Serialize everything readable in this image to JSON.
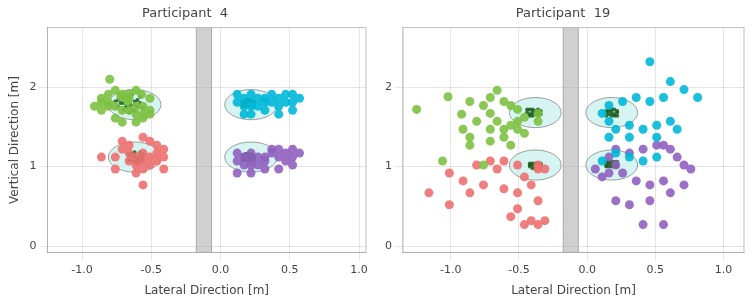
{
  "chart_data": [
    {
      "type": "scatter",
      "title": "Participant  4",
      "xlabel": "Lateral Direction [m]",
      "ylabel": "Vertical Direction [m]",
      "xlim": [
        -1.25,
        1.05
      ],
      "ylim": [
        -0.08,
        2.75
      ],
      "xticks": [
        {
          "value": -1.0,
          "label": "-1.0"
        },
        {
          "value": -0.5,
          "label": "-0.5"
        },
        {
          "value": 0.0,
          "label": "0.0"
        },
        {
          "value": 0.5,
          "label": "0.5"
        },
        {
          "value": 1.0,
          "label": "1.0"
        }
      ],
      "yticks": [
        0,
        1,
        2
      ],
      "grid": true,
      "band": {
        "x": [
          -0.175,
          -0.065
        ],
        "color": "#aaaaaa"
      },
      "targets": {
        "x": [
          -0.62,
          -0.62,
          0.22,
          0.22
        ],
        "y": [
          1.78,
          1.12,
          1.78,
          1.12
        ],
        "radius": 0.19,
        "color": "#c8f0ec"
      },
      "series": [
        {
          "color": "#7dc142",
          "marker": "circle",
          "x": [
            -0.8,
            -0.72,
            -0.66,
            -0.61,
            -0.67,
            -0.57,
            -0.51,
            -0.56,
            -0.61,
            -0.51,
            -0.56,
            -0.61,
            -0.51,
            -0.56,
            -0.61,
            -0.71,
            -0.76,
            -0.71,
            -0.66,
            -0.76,
            -0.81,
            -0.66,
            -0.71,
            -0.76,
            -0.81,
            -0.86,
            -0.81,
            -0.86,
            -0.91,
            -0.86
          ],
          "values": [
            2.1,
            1.88,
            1.92,
            1.96,
            1.82,
            1.91,
            1.86,
            1.76,
            1.76,
            1.71,
            1.66,
            1.66,
            1.66,
            1.61,
            1.56,
            1.56,
            1.61,
            1.71,
            1.71,
            1.76,
            1.81,
            1.86,
            1.91,
            1.96,
            1.91,
            1.86,
            1.76,
            1.71,
            1.76,
            1.81
          ]
        },
        {
          "color": "#f07070",
          "marker": "circle",
          "x": [
            -0.56,
            -0.61,
            -0.51,
            -0.56,
            -0.61,
            -0.51,
            -0.56,
            -0.46,
            -0.66,
            -0.46,
            -0.66,
            -0.71,
            -0.41,
            -0.46,
            -0.66,
            -0.76,
            -0.41,
            -0.51,
            -0.71,
            -0.56,
            -0.61,
            -0.56,
            -0.76,
            -0.41,
            -0.86
          ],
          "values": [
            1.17,
            1.12,
            1.12,
            1.07,
            1.02,
            1.02,
            0.97,
            1.07,
            1.07,
            1.17,
            1.17,
            1.22,
            1.22,
            1.27,
            1.27,
            1.12,
            1.12,
            1.32,
            1.32,
            1.37,
            0.92,
            0.77,
            0.97,
            0.97,
            1.12
          ]
        },
        {
          "color": "#00b8d9",
          "marker": "circle",
          "x": [
            0.12,
            0.17,
            0.22,
            0.27,
            0.22,
            0.12,
            0.17,
            0.22,
            0.27,
            0.32,
            0.32,
            0.37,
            0.42,
            0.47,
            0.52,
            0.57,
            0.47,
            0.37,
            0.42,
            0.52,
            0.52,
            0.42,
            0.32,
            0.22,
            0.17
          ],
          "values": [
            1.91,
            1.86,
            1.91,
            1.86,
            1.81,
            1.81,
            1.76,
            1.76,
            1.76,
            1.81,
            1.86,
            1.91,
            1.86,
            1.91,
            1.91,
            1.86,
            1.81,
            1.81,
            1.76,
            1.81,
            1.71,
            1.66,
            1.71,
            1.66,
            1.66
          ]
        },
        {
          "color": "#9060c0",
          "marker": "circle",
          "x": [
            0.12,
            0.17,
            0.22,
            0.27,
            0.22,
            0.12,
            0.17,
            0.22,
            0.27,
            0.32,
            0.32,
            0.37,
            0.42,
            0.47,
            0.52,
            0.47,
            0.37,
            0.42,
            0.52,
            0.57,
            0.52,
            0.42,
            0.32,
            0.22,
            0.12
          ],
          "values": [
            1.17,
            1.12,
            1.17,
            1.12,
            1.07,
            1.07,
            1.02,
            1.02,
            1.02,
            1.07,
            1.12,
            1.17,
            1.12,
            1.07,
            1.12,
            1.17,
            1.22,
            1.22,
            1.22,
            1.17,
            1.02,
            0.97,
            0.97,
            0.92,
            0.92
          ]
        },
        {
          "color": "#1a5c1a",
          "marker": "dot",
          "x": [
            -0.68,
            -0.62,
            -0.65,
            -0.6,
            -0.64,
            -0.68,
            -0.72,
            -0.7,
            -0.58,
            -0.56,
            -0.66,
            -0.7,
            -0.74,
            -0.76,
            -0.72,
            -0.64,
            -0.6,
            -0.62,
            -0.58,
            -0.66,
            -0.68,
            -0.62,
            -0.7,
            -0.74,
            -0.66
          ],
          "values": [
            1.84,
            1.82,
            1.78,
            1.76,
            1.72,
            1.76,
            1.8,
            1.86,
            1.88,
            1.74,
            1.68,
            1.72,
            1.76,
            1.82,
            1.88,
            1.9,
            1.84,
            1.7,
            1.8,
            1.86,
            1.74,
            1.78,
            1.8,
            1.84,
            1.76
          ]
        },
        {
          "color": "#1a5c1a",
          "marker": "dot",
          "x": [
            -0.62,
            -0.58,
            -0.64,
            -0.6,
            -0.56,
            -0.66,
            -0.62,
            -0.58,
            -0.64,
            -0.6,
            -0.56,
            -0.66,
            -0.62,
            -0.58,
            -0.64,
            -0.6,
            -0.56,
            -0.66,
            -0.62,
            -0.58
          ],
          "values": [
            1.14,
            1.1,
            1.08,
            1.04,
            1.12,
            1.16,
            1.18,
            1.06,
            1.14,
            1.1,
            1.08,
            1.12,
            1.06,
            1.14,
            1.16,
            1.08,
            1.16,
            1.08,
            1.12,
            1.18
          ]
        },
        {
          "color": "#1a5c1a",
          "marker": "dot",
          "x": [
            0.2,
            0.16,
            0.22,
            0.18,
            0.24,
            0.2,
            0.16,
            0.22,
            0.18,
            0.24,
            0.2,
            0.16,
            0.22,
            0.18,
            0.24,
            0.2,
            0.16,
            0.22,
            0.18,
            0.24
          ],
          "values": [
            1.82,
            1.78,
            1.76,
            1.82,
            1.8,
            1.76,
            1.82,
            1.8,
            1.76,
            1.82,
            1.78,
            1.8,
            1.78,
            1.8,
            1.78,
            1.84,
            1.76,
            1.84,
            1.84,
            1.76
          ]
        },
        {
          "color": "#1a5c1a",
          "marker": "dot",
          "x": [
            0.2,
            0.16,
            0.22,
            0.18,
            0.24,
            0.2,
            0.16,
            0.22,
            0.18,
            0.24,
            0.2,
            0.16,
            0.22,
            0.18,
            0.24,
            0.2,
            0.16,
            0.22,
            0.18,
            0.24
          ],
          "values": [
            1.14,
            1.1,
            1.08,
            1.14,
            1.12,
            1.08,
            1.14,
            1.12,
            1.08,
            1.14,
            1.1,
            1.12,
            1.1,
            1.12,
            1.1,
            1.16,
            1.08,
            1.16,
            1.16,
            1.08
          ]
        }
      ]
    },
    {
      "type": "scatter",
      "title": "Participant  19",
      "xlabel": "Lateral Direction [m]",
      "xlim": [
        -1.35,
        1.15
      ],
      "ylim": [
        -0.08,
        2.75
      ],
      "xticks": [
        {
          "value": -1.0,
          "label": "-1.0"
        },
        {
          "value": -0.5,
          "label": "-0.5"
        },
        {
          "value": 0.0,
          "label": "0.0"
        },
        {
          "value": 0.5,
          "label": "0.5"
        },
        {
          "value": 1.0,
          "label": "1.0"
        }
      ],
      "yticks": [
        0,
        1,
        2
      ],
      "grid": true,
      "band": {
        "x": [
          -0.175,
          -0.065
        ],
        "color": "#aaaaaa"
      },
      "targets": {
        "x": [
          -0.38,
          -0.38,
          0.18,
          0.18
        ],
        "y": [
          1.68,
          1.02,
          1.68,
          1.02
        ],
        "radius": 0.19,
        "color": "#c8f0ec"
      },
      "series": [
        {
          "color": "#7dc142",
          "marker": "circle",
          "x": [
            -1.25,
            -1.02,
            -0.92,
            -0.86,
            -0.76,
            -0.71,
            -0.66,
            -0.61,
            -0.56,
            -0.51,
            -0.51,
            -0.56,
            -0.46,
            -0.36,
            -0.36,
            -0.51,
            -0.66,
            -0.71,
            -0.81,
            -0.91,
            -0.71,
            -0.61,
            -1.06,
            -0.76,
            -0.61,
            -0.86,
            -0.46,
            -0.71,
            -0.86,
            -0.56
          ],
          "values": [
            1.72,
            1.88,
            1.66,
            1.82,
            1.77,
            1.87,
            1.96,
            1.82,
            1.77,
            1.72,
            1.57,
            1.52,
            1.62,
            1.67,
            1.57,
            1.47,
            1.57,
            1.67,
            1.57,
            1.47,
            1.47,
            1.47,
            1.07,
            1.02,
            1.37,
            1.37,
            1.42,
            1.32,
            1.27,
            1.27
          ]
        },
        {
          "color": "#f07070",
          "marker": "circle",
          "x": [
            -1.16,
            -1.01,
            -0.91,
            -0.81,
            -0.71,
            -0.66,
            -0.61,
            -0.51,
            -0.46,
            -0.41,
            -0.51,
            -0.61,
            -0.36,
            -0.36,
            -0.36,
            -0.31,
            -0.31,
            -0.41,
            -0.36,
            -0.46,
            -0.51,
            -0.56,
            -0.76,
            -0.86,
            -1.01
          ],
          "values": [
            0.67,
            0.92,
            0.82,
            1.02,
            1.07,
            0.97,
            1.07,
            1.02,
            0.87,
            0.77,
            0.67,
            0.72,
            0.97,
            1.02,
            0.27,
            0.32,
            0.97,
            0.32,
            0.57,
            0.27,
            0.47,
            0.37,
            0.77,
            0.67,
            0.52
          ]
        },
        {
          "color": "#00b8d9",
          "marker": "circle",
          "x": [
            0.46,
            0.61,
            0.71,
            0.81,
            0.56,
            0.46,
            0.36,
            0.26,
            0.16,
            0.11,
            0.16,
            0.21,
            0.31,
            0.41,
            0.51,
            0.61,
            0.66,
            0.51,
            0.31,
            0.16,
            0.11,
            0.21,
            0.31,
            0.41,
            0.51
          ],
          "values": [
            2.32,
            2.07,
            1.97,
            1.87,
            1.87,
            1.82,
            1.87,
            1.82,
            1.77,
            1.67,
            1.57,
            1.47,
            1.52,
            1.47,
            1.52,
            1.57,
            1.47,
            1.37,
            1.37,
            1.37,
            1.07,
            1.17,
            1.12,
            1.07,
            1.12
          ]
        },
        {
          "color": "#9060c0",
          "marker": "circle",
          "x": [
            0.56,
            0.61,
            0.71,
            0.56,
            0.46,
            0.36,
            0.26,
            0.21,
            0.16,
            0.11,
            0.06,
            0.16,
            0.21,
            0.31,
            0.41,
            0.51,
            0.61,
            0.66,
            0.71,
            0.76,
            0.46,
            0.31,
            0.21,
            0.56,
            0.41
          ],
          "values": [
            1.27,
            0.67,
            0.77,
            0.82,
            0.77,
            0.82,
            0.92,
            1.02,
            0.92,
            0.87,
            0.97,
            1.12,
            1.22,
            1.17,
            1.22,
            1.27,
            1.22,
            1.12,
            1.02,
            0.97,
            0.57,
            0.52,
            0.57,
            0.27,
            0.27
          ]
        },
        {
          "color": "#1a5c1a",
          "marker": "dot",
          "x": [
            -0.42,
            -0.36,
            -0.4,
            -0.34,
            -0.38,
            -0.44,
            -0.4,
            -0.36,
            -0.42,
            -0.38,
            -0.34,
            -0.44,
            -0.4,
            -0.36,
            -0.42
          ],
          "values": [
            1.72,
            1.68,
            1.64,
            1.7,
            1.66,
            1.68,
            1.72,
            1.64,
            1.66,
            1.7,
            1.66,
            1.72,
            1.68,
            1.72,
            1.64
          ]
        },
        {
          "color": "#1a5c1a",
          "marker": "dot",
          "x": [
            -0.38,
            -0.34,
            -0.4,
            -0.36,
            -0.42,
            -0.38,
            -0.34,
            -0.4,
            -0.36,
            -0.42,
            -0.38,
            -0.34,
            -0.4,
            -0.36,
            -0.42
          ],
          "values": [
            1.04,
            1.0,
            0.98,
            1.04,
            1.02,
            0.98,
            1.04,
            1.02,
            0.98,
            1.04,
            1.02,
            1.02,
            1.04,
            1.0,
            1.0
          ]
        },
        {
          "color": "#1a5c1a",
          "marker": "dot",
          "x": [
            0.16,
            0.2,
            0.14,
            0.18,
            0.22,
            0.16,
            0.2,
            0.14,
            0.18,
            0.22,
            0.16,
            0.2,
            0.14,
            0.18,
            0.22
          ],
          "values": [
            1.7,
            1.66,
            1.68,
            1.72,
            1.68,
            1.66,
            1.72,
            1.64,
            1.68,
            1.64,
            1.72,
            1.64,
            1.7,
            1.64,
            1.7
          ]
        },
        {
          "color": "#1a5c1a",
          "marker": "dot",
          "x": [
            0.16,
            0.2,
            0.14,
            0.18,
            0.22,
            0.16,
            0.2,
            0.14,
            0.18,
            0.22,
            0.16,
            0.2,
            0.14,
            0.18,
            0.22
          ],
          "values": [
            1.04,
            1.0,
            1.02,
            1.06,
            1.02,
            1.0,
            1.06,
            1.0,
            1.02,
            1.0,
            1.06,
            1.02,
            1.06,
            1.0,
            1.06
          ]
        }
      ]
    }
  ]
}
